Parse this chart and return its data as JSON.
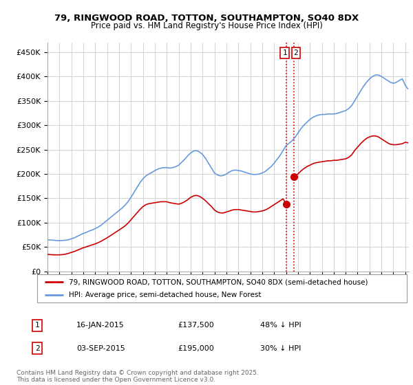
{
  "title1": "79, RINGWOOD ROAD, TOTTON, SOUTHAMPTON, SO40 8DX",
  "title2": "Price paid vs. HM Land Registry's House Price Index (HPI)",
  "ylabel_ticks": [
    "£0",
    "£50K",
    "£100K",
    "£150K",
    "£200K",
    "£250K",
    "£300K",
    "£350K",
    "£400K",
    "£450K"
  ],
  "ytick_vals": [
    0,
    50000,
    100000,
    150000,
    200000,
    250000,
    300000,
    350000,
    400000,
    450000
  ],
  "ylim": [
    0,
    470000
  ],
  "xlim_start": 1995.0,
  "xlim_end": 2025.3,
  "hpi_color": "#6699dd",
  "price_color": "#cc0000",
  "vline_color": "#cc0000",
  "annotation_box_color": "#cc0000",
  "grid_color": "#cccccc",
  "background_color": "#ffffff",
  "legend_label_red": "79, RINGWOOD ROAD, TOTTON, SOUTHAMPTON, SO40 8DX (semi-detached house)",
  "legend_label_blue": "HPI: Average price, semi-detached house, New Forest",
  "transaction1_date": "16-JAN-2015",
  "transaction1_price": "£137,500",
  "transaction1_hpi": "48% ↓ HPI",
  "transaction2_date": "03-SEP-2015",
  "transaction2_price": "£195,000",
  "transaction2_hpi": "30% ↓ HPI",
  "footer": "Contains HM Land Registry data © Crown copyright and database right 2025.\nThis data is licensed under the Open Government Licence v3.0.",
  "vline1_x": 2015.04,
  "vline2_x": 2015.67,
  "marker1_x": 2015.04,
  "marker1_y": 137500,
  "marker2_x": 2015.67,
  "marker2_y": 195000,
  "hpi_data": [
    [
      1995,
      65000
    ],
    [
      1995.25,
      64500
    ],
    [
      1995.5,
      64000
    ],
    [
      1995.75,
      63500
    ],
    [
      1996,
      63000
    ],
    [
      1996.25,
      63500
    ],
    [
      1996.5,
      64000
    ],
    [
      1996.75,
      65000
    ],
    [
      1997,
      67000
    ],
    [
      1997.25,
      69000
    ],
    [
      1997.5,
      72000
    ],
    [
      1997.75,
      75000
    ],
    [
      1998,
      78000
    ],
    [
      1998.25,
      80000
    ],
    [
      1998.5,
      83000
    ],
    [
      1998.75,
      85000
    ],
    [
      1999,
      88000
    ],
    [
      1999.25,
      91000
    ],
    [
      1999.5,
      95000
    ],
    [
      1999.75,
      100000
    ],
    [
      2000,
      105000
    ],
    [
      2000.25,
      110000
    ],
    [
      2000.5,
      115000
    ],
    [
      2000.75,
      120000
    ],
    [
      2001,
      125000
    ],
    [
      2001.25,
      130000
    ],
    [
      2001.5,
      136000
    ],
    [
      2001.75,
      143000
    ],
    [
      2002,
      152000
    ],
    [
      2002.25,
      162000
    ],
    [
      2002.5,
      172000
    ],
    [
      2002.75,
      182000
    ],
    [
      2003,
      190000
    ],
    [
      2003.25,
      196000
    ],
    [
      2003.5,
      200000
    ],
    [
      2003.75,
      203000
    ],
    [
      2004,
      207000
    ],
    [
      2004.25,
      210000
    ],
    [
      2004.5,
      212000
    ],
    [
      2004.75,
      213000
    ],
    [
      2005,
      213000
    ],
    [
      2005.25,
      212000
    ],
    [
      2005.5,
      213000
    ],
    [
      2005.75,
      215000
    ],
    [
      2006,
      218000
    ],
    [
      2006.25,
      224000
    ],
    [
      2006.5,
      230000
    ],
    [
      2006.75,
      237000
    ],
    [
      2007,
      243000
    ],
    [
      2007.25,
      247000
    ],
    [
      2007.5,
      248000
    ],
    [
      2007.75,
      245000
    ],
    [
      2008,
      240000
    ],
    [
      2008.25,
      232000
    ],
    [
      2008.5,
      222000
    ],
    [
      2008.75,
      212000
    ],
    [
      2009,
      202000
    ],
    [
      2009.25,
      198000
    ],
    [
      2009.5,
      196000
    ],
    [
      2009.75,
      197000
    ],
    [
      2010,
      200000
    ],
    [
      2010.25,
      204000
    ],
    [
      2010.5,
      207000
    ],
    [
      2010.75,
      208000
    ],
    [
      2011,
      207000
    ],
    [
      2011.25,
      206000
    ],
    [
      2011.5,
      204000
    ],
    [
      2011.75,
      202000
    ],
    [
      2012,
      200000
    ],
    [
      2012.25,
      199000
    ],
    [
      2012.5,
      199000
    ],
    [
      2012.75,
      200000
    ],
    [
      2013,
      202000
    ],
    [
      2013.25,
      205000
    ],
    [
      2013.5,
      210000
    ],
    [
      2013.75,
      215000
    ],
    [
      2014,
      222000
    ],
    [
      2014.25,
      230000
    ],
    [
      2014.5,
      238000
    ],
    [
      2014.75,
      248000
    ],
    [
      2015,
      258000
    ],
    [
      2015.25,
      263000
    ],
    [
      2015.5,
      268000
    ],
    [
      2015.75,
      275000
    ],
    [
      2016,
      284000
    ],
    [
      2016.25,
      293000
    ],
    [
      2016.5,
      300000
    ],
    [
      2016.75,
      306000
    ],
    [
      2017,
      312000
    ],
    [
      2017.25,
      316000
    ],
    [
      2017.5,
      319000
    ],
    [
      2017.75,
      321000
    ],
    [
      2018,
      322000
    ],
    [
      2018.25,
      322000
    ],
    [
      2018.5,
      323000
    ],
    [
      2018.75,
      323000
    ],
    [
      2019,
      323000
    ],
    [
      2019.25,
      324000
    ],
    [
      2019.5,
      326000
    ],
    [
      2019.75,
      328000
    ],
    [
      2020,
      330000
    ],
    [
      2020.25,
      334000
    ],
    [
      2020.5,
      340000
    ],
    [
      2020.75,
      350000
    ],
    [
      2021,
      360000
    ],
    [
      2021.25,
      370000
    ],
    [
      2021.5,
      380000
    ],
    [
      2021.75,
      388000
    ],
    [
      2022,
      395000
    ],
    [
      2022.25,
      400000
    ],
    [
      2022.5,
      403000
    ],
    [
      2022.75,
      403000
    ],
    [
      2023,
      400000
    ],
    [
      2023.25,
      396000
    ],
    [
      2023.5,
      392000
    ],
    [
      2023.75,
      388000
    ],
    [
      2024,
      386000
    ],
    [
      2024.25,
      388000
    ],
    [
      2024.5,
      392000
    ],
    [
      2024.75,
      395000
    ],
    [
      2025,
      382000
    ],
    [
      2025.2,
      375000
    ]
  ],
  "price_data_before": [
    [
      1995,
      35000
    ],
    [
      1995.25,
      34500
    ],
    [
      1995.5,
      34000
    ],
    [
      1995.75,
      34000
    ],
    [
      1996,
      34000
    ],
    [
      1996.25,
      34500
    ],
    [
      1996.5,
      35500
    ],
    [
      1996.75,
      37000
    ],
    [
      1997,
      39000
    ],
    [
      1997.25,
      41000
    ],
    [
      1997.5,
      43500
    ],
    [
      1997.75,
      46000
    ],
    [
      1998,
      48500
    ],
    [
      1998.25,
      50500
    ],
    [
      1998.5,
      52500
    ],
    [
      1998.75,
      54500
    ],
    [
      1999,
      56500
    ],
    [
      1999.25,
      59000
    ],
    [
      1999.5,
      62000
    ],
    [
      1999.75,
      65500
    ],
    [
      2000,
      69000
    ],
    [
      2000.25,
      73000
    ],
    [
      2000.5,
      77000
    ],
    [
      2000.75,
      81000
    ],
    [
      2001,
      85000
    ],
    [
      2001.25,
      89000
    ],
    [
      2001.5,
      93500
    ],
    [
      2001.75,
      99000
    ],
    [
      2002,
      106000
    ],
    [
      2002.25,
      113000
    ],
    [
      2002.5,
      120000
    ],
    [
      2002.75,
      127000
    ],
    [
      2003,
      133000
    ],
    [
      2003.25,
      137000
    ],
    [
      2003.5,
      139000
    ],
    [
      2003.75,
      140000
    ],
    [
      2004,
      141000
    ],
    [
      2004.25,
      142000
    ],
    [
      2004.5,
      143000
    ],
    [
      2004.75,
      143000
    ],
    [
      2005,
      143000
    ],
    [
      2005.25,
      141000
    ],
    [
      2005.5,
      140000
    ],
    [
      2005.75,
      139000
    ],
    [
      2006,
      138000
    ],
    [
      2006.25,
      140000
    ],
    [
      2006.5,
      143000
    ],
    [
      2006.75,
      147000
    ],
    [
      2007,
      152000
    ],
    [
      2007.25,
      155000
    ],
    [
      2007.5,
      156000
    ],
    [
      2007.75,
      154000
    ],
    [
      2008,
      150000
    ],
    [
      2008.25,
      145000
    ],
    [
      2008.5,
      139000
    ],
    [
      2008.75,
      133000
    ],
    [
      2009,
      126000
    ],
    [
      2009.25,
      122000
    ],
    [
      2009.5,
      120000
    ],
    [
      2009.75,
      120000
    ],
    [
      2010,
      122000
    ],
    [
      2010.25,
      124000
    ],
    [
      2010.5,
      126000
    ],
    [
      2010.75,
      127000
    ],
    [
      2011,
      127000
    ],
    [
      2011.25,
      126000
    ],
    [
      2011.5,
      125000
    ],
    [
      2011.75,
      124000
    ],
    [
      2012,
      123000
    ],
    [
      2012.25,
      122000
    ],
    [
      2012.5,
      122000
    ],
    [
      2012.75,
      123000
    ],
    [
      2013,
      124000
    ],
    [
      2013.25,
      126000
    ],
    [
      2013.5,
      129000
    ],
    [
      2013.75,
      133000
    ],
    [
      2014,
      137000
    ],
    [
      2014.25,
      141000
    ],
    [
      2014.5,
      145000
    ],
    [
      2014.75,
      149000
    ],
    [
      2015.04,
      137500
    ]
  ],
  "price_data_after": [
    [
      2015.67,
      195000
    ],
    [
      2016,
      200000
    ],
    [
      2016.25,
      206000
    ],
    [
      2016.5,
      211000
    ],
    [
      2016.75,
      215000
    ],
    [
      2017,
      218000
    ],
    [
      2017.25,
      221000
    ],
    [
      2017.5,
      223000
    ],
    [
      2017.75,
      224000
    ],
    [
      2018,
      225000
    ],
    [
      2018.25,
      226000
    ],
    [
      2018.5,
      227000
    ],
    [
      2018.75,
      227000
    ],
    [
      2019,
      228000
    ],
    [
      2019.25,
      228000
    ],
    [
      2019.5,
      229000
    ],
    [
      2019.75,
      230000
    ],
    [
      2020,
      231000
    ],
    [
      2020.25,
      234000
    ],
    [
      2020.5,
      239000
    ],
    [
      2020.75,
      248000
    ],
    [
      2021,
      255000
    ],
    [
      2021.25,
      262000
    ],
    [
      2021.5,
      268000
    ],
    [
      2021.75,
      273000
    ],
    [
      2022,
      276000
    ],
    [
      2022.25,
      278000
    ],
    [
      2022.5,
      278000
    ],
    [
      2022.75,
      276000
    ],
    [
      2023,
      272000
    ],
    [
      2023.25,
      268000
    ],
    [
      2023.5,
      264000
    ],
    [
      2023.75,
      261000
    ],
    [
      2024,
      260000
    ],
    [
      2024.25,
      260000
    ],
    [
      2024.5,
      261000
    ],
    [
      2024.75,
      262000
    ],
    [
      2025,
      265000
    ],
    [
      2025.2,
      264000
    ]
  ]
}
